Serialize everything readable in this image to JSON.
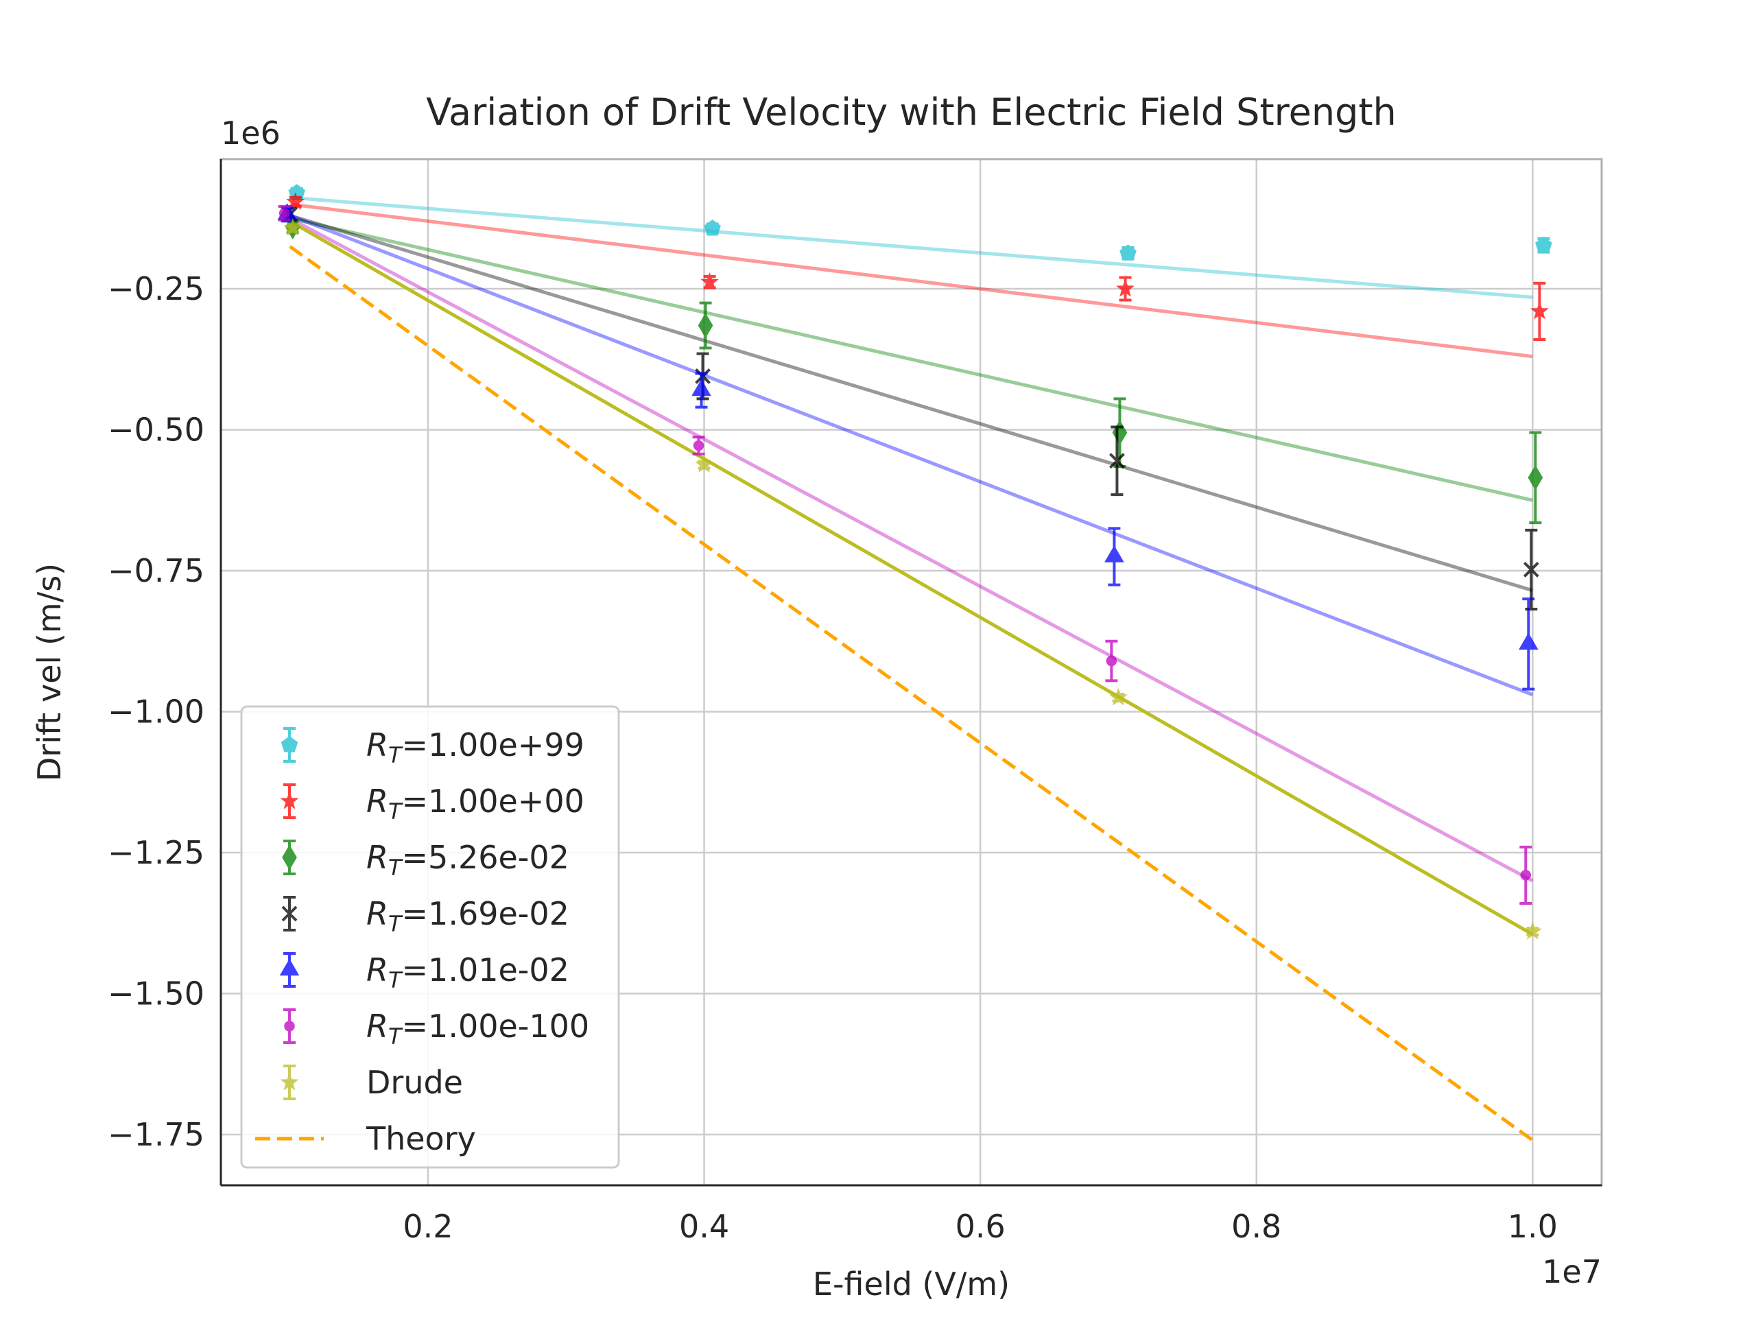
{
  "chart_data": {
    "type": "scatter",
    "title": "Variation of Drift Velocity with Electric Field Strength",
    "xlabel": "E-field (V/m)",
    "ylabel": "Drift vel (m/s)",
    "x_offset_label": "1e7",
    "y_offset_label": "1e6",
    "xlim": [
      0.05,
      1.05
    ],
    "ylim": [
      -1.84,
      -0.02
    ],
    "x_unit_scale": 10000000,
    "y_unit_scale": 1000000,
    "xticks": [
      {
        "value": 0.2,
        "label": "0.2"
      },
      {
        "value": 0.4,
        "label": "0.4"
      },
      {
        "value": 0.6,
        "label": "0.6"
      },
      {
        "value": 0.8,
        "label": "0.8"
      },
      {
        "value": 1.0,
        "label": "1.0"
      }
    ],
    "yticks": [
      {
        "value": -0.25,
        "label": "−0.25"
      },
      {
        "value": -0.5,
        "label": "−0.50"
      },
      {
        "value": -0.75,
        "label": "−0.75"
      },
      {
        "value": -1.0,
        "label": "−1.00"
      },
      {
        "value": -1.25,
        "label": "−1.25"
      },
      {
        "value": -1.5,
        "label": "−1.50"
      },
      {
        "value": -1.75,
        "label": "−1.75"
      }
    ],
    "grid": true,
    "legend_position": "lower-left",
    "series": [
      {
        "name": "R_T=1.00e+99",
        "label_prefix": "R",
        "label_sub": "T",
        "label_rest": "=1.00e+99",
        "color": "#17becf",
        "marker": "pentagon",
        "points": [
          {
            "x": 0.105,
            "y": -0.08,
            "err": 0.008
          },
          {
            "x": 0.406,
            "y": -0.143,
            "err": 0.008
          },
          {
            "x": 0.707,
            "y": -0.187,
            "err": 0.01
          },
          {
            "x": 1.008,
            "y": -0.173,
            "err": 0.012
          }
        ],
        "fit": [
          [
            0.1,
            -0.088
          ],
          [
            1.0,
            -0.265
          ]
        ]
      },
      {
        "name": "R_T=1.00e+00",
        "label_prefix": "R",
        "label_sub": "T",
        "label_rest": "=1.00e+00",
        "color": "#ff0000",
        "marker": "star",
        "points": [
          {
            "x": 0.104,
            "y": -0.096,
            "err": 0.008
          },
          {
            "x": 0.404,
            "y": -0.238,
            "err": 0.01
          },
          {
            "x": 0.705,
            "y": -0.25,
            "err": 0.02
          },
          {
            "x": 1.005,
            "y": -0.29,
            "err": 0.05
          }
        ],
        "fit": [
          [
            0.1,
            -0.1
          ],
          [
            1.0,
            -0.37
          ]
        ]
      },
      {
        "name": "R_T=5.26e-02",
        "label_prefix": "R",
        "label_sub": "T",
        "label_rest": "=5.26e-02",
        "color": "#008000",
        "marker": "diamond",
        "points": [
          {
            "x": 0.102,
            "y": -0.14,
            "err": 0.01
          },
          {
            "x": 0.401,
            "y": -0.315,
            "err": 0.04
          },
          {
            "x": 0.701,
            "y": -0.505,
            "err": 0.06
          },
          {
            "x": 1.002,
            "y": -0.585,
            "err": 0.08
          }
        ],
        "fit": [
          [
            0.1,
            -0.125
          ],
          [
            1.0,
            -0.625
          ]
        ]
      },
      {
        "name": "R_T=1.69e-02",
        "label_prefix": "R",
        "label_sub": "T",
        "label_rest": "=1.69e-02",
        "color": "#000000",
        "marker": "x",
        "points": [
          {
            "x": 0.1,
            "y": -0.118,
            "err": 0.01
          },
          {
            "x": 0.399,
            "y": -0.405,
            "err": 0.04
          },
          {
            "x": 0.699,
            "y": -0.555,
            "err": 0.06
          },
          {
            "x": 0.999,
            "y": -0.748,
            "err": 0.07
          }
        ],
        "fit": [
          [
            0.1,
            -0.12
          ],
          [
            1.0,
            -0.785
          ]
        ]
      },
      {
        "name": "R_T=1.01e-02",
        "label_prefix": "R",
        "label_sub": "T",
        "label_rest": "=1.01e-02",
        "color": "#0000ff",
        "marker": "triangle",
        "points": [
          {
            "x": 0.098,
            "y": -0.118,
            "err": 0.012
          },
          {
            "x": 0.398,
            "y": -0.43,
            "err": 0.03
          },
          {
            "x": 0.697,
            "y": -0.725,
            "err": 0.05
          },
          {
            "x": 0.997,
            "y": -0.88,
            "err": 0.08
          }
        ],
        "fit": [
          [
            0.1,
            -0.12
          ],
          [
            1.0,
            -0.97
          ]
        ]
      },
      {
        "name": "R_T=1.00e-100",
        "label_prefix": "R",
        "label_sub": "T",
        "label_rest": "=1.00e-100",
        "color": "#bf00bf",
        "marker": "dot",
        "points": [
          {
            "x": 0.096,
            "y": -0.116,
            "err": 0.012
          },
          {
            "x": 0.396,
            "y": -0.528,
            "err": 0.015
          },
          {
            "x": 0.695,
            "y": -0.91,
            "err": 0.035
          },
          {
            "x": 0.995,
            "y": -1.29,
            "err": 0.05
          }
        ],
        "fit": [
          [
            0.1,
            -0.125
          ],
          [
            1.0,
            -1.3
          ]
        ]
      },
      {
        "name": "Drude",
        "label_prefix": "",
        "label_sub": "",
        "label_rest": "Drude",
        "color": "#bcbd22",
        "marker": "star",
        "points": [
          {
            "x": 0.102,
            "y": -0.142,
            "err": 0.006
          },
          {
            "x": 0.4,
            "y": -0.562,
            "err": 0.006
          },
          {
            "x": 0.7,
            "y": -0.975,
            "err": 0.006
          },
          {
            "x": 1.0,
            "y": -1.39,
            "err": 0.006
          }
        ],
        "fit": [
          [
            0.1,
            -0.13
          ],
          [
            1.0,
            -1.395
          ]
        ]
      }
    ],
    "theory": {
      "name": "Theory",
      "color": "#ffa500",
      "line": [
        [
          0.1,
          -0.175
        ],
        [
          1.0,
          -1.76
        ]
      ]
    }
  }
}
